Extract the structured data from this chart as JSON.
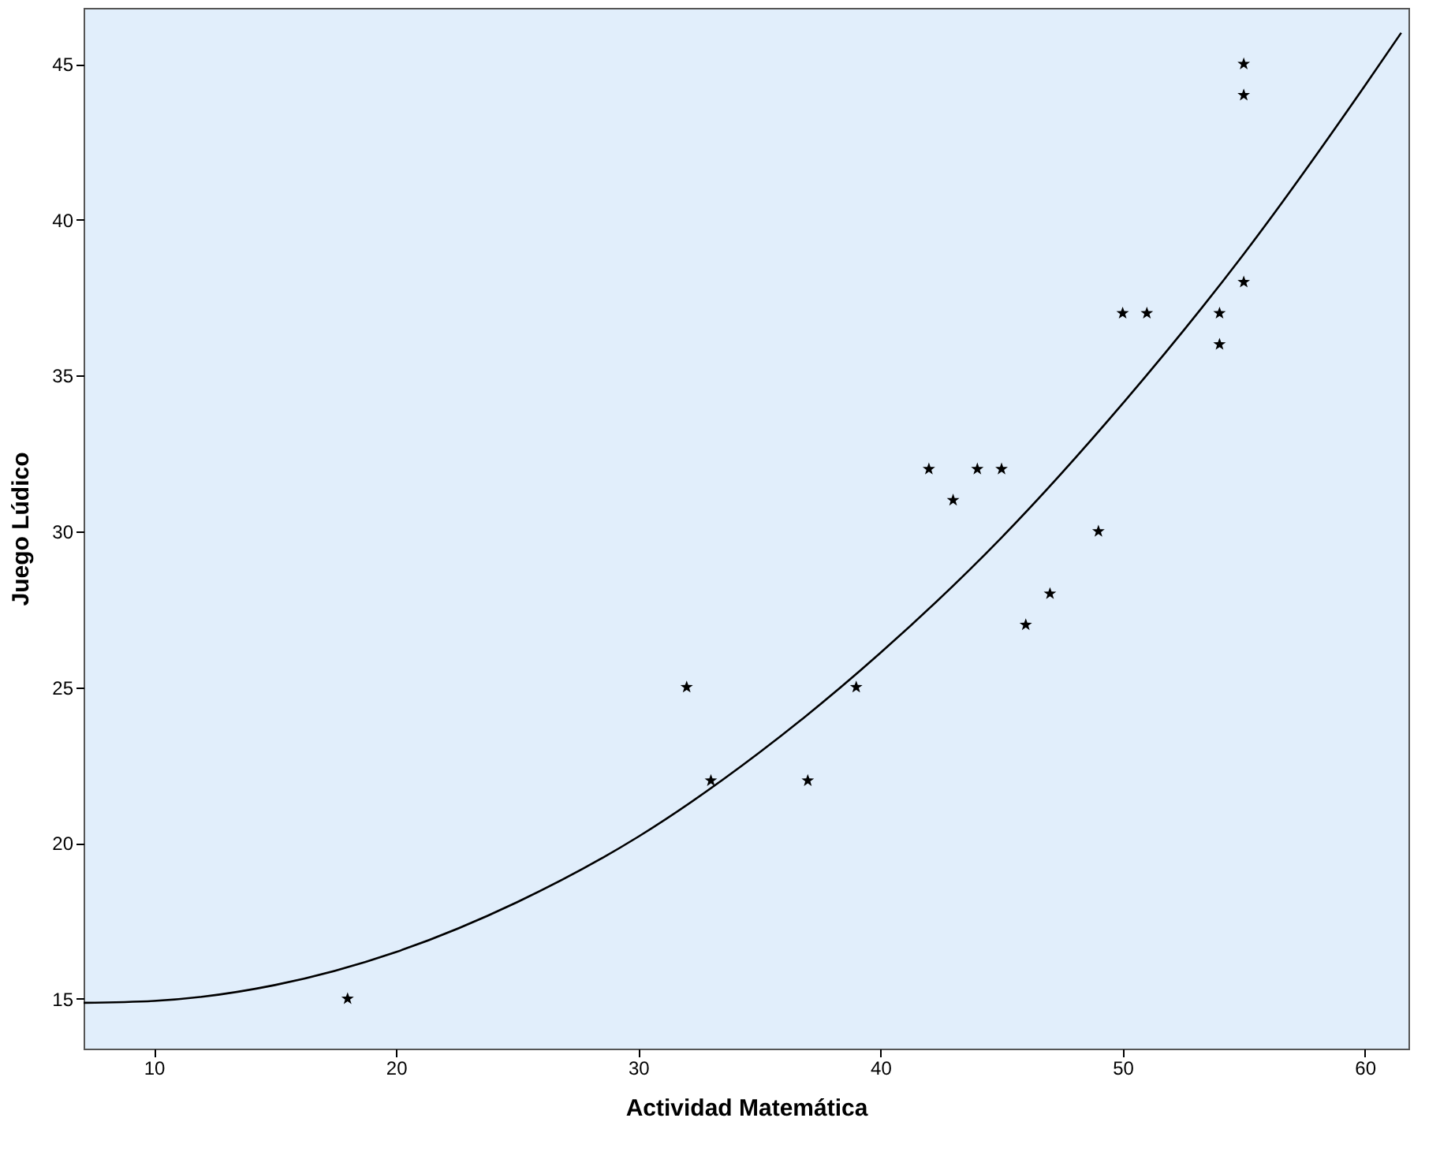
{
  "chart_data": {
    "type": "scatter",
    "xlabel": "Actividad Matemática",
    "ylabel": "Juego Lúdico",
    "xlim": [
      7.1,
      61.8
    ],
    "ylim": [
      13.4,
      46.8
    ],
    "xticks": [
      10,
      20,
      30,
      40,
      50,
      60
    ],
    "yticks": [
      15,
      20,
      25,
      30,
      35,
      40,
      45
    ],
    "grid": false,
    "marker": "star",
    "series": [
      {
        "color": "#000000",
        "x": [
          18,
          32,
          33,
          37,
          39,
          42,
          43,
          44,
          45,
          46,
          47,
          49,
          50,
          51,
          54,
          54,
          55,
          55,
          55
        ],
        "values": [
          15,
          25,
          22,
          22,
          25,
          32,
          31,
          32,
          32,
          27,
          28,
          30,
          37,
          37,
          37,
          36,
          45,
          44,
          38
        ]
      },
      {
        "type": "line",
        "marker": "none",
        "color": "#000000",
        "x": [
          7.1,
          10,
          15,
          20,
          25,
          30,
          35,
          40,
          45,
          50,
          55,
          60,
          61.5
        ],
        "values": [
          14.87,
          14.93,
          15.44,
          16.5,
          18.1,
          20.2,
          22.9,
          26.1,
          29.8,
          34.1,
          38.9,
          44.3,
          46.0
        ]
      }
    ]
  }
}
